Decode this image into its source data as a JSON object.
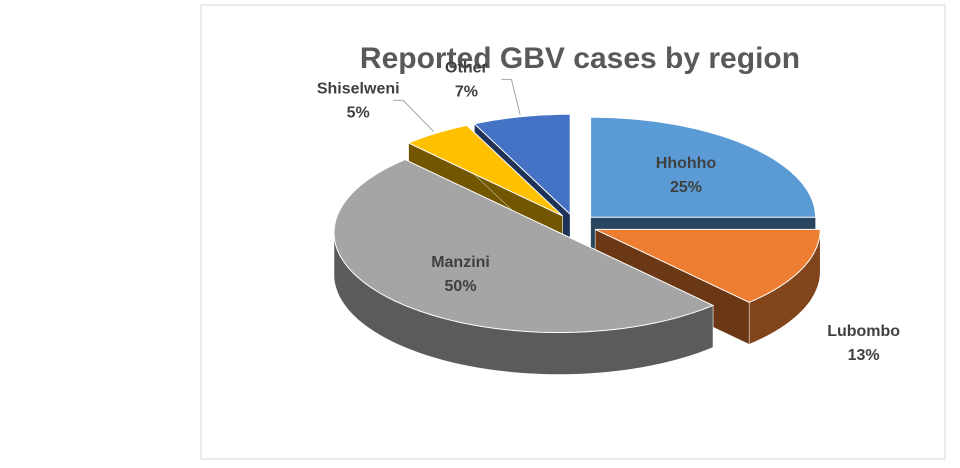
{
  "chart_data": {
    "type": "pie",
    "title": "Reported GBV cases by region",
    "categories": [
      "Hhohho",
      "Lubombo",
      "Manzini",
      "Shiselweni",
      "Other"
    ],
    "values": [
      25,
      13,
      50,
      5,
      7
    ],
    "value_labels": [
      "25%",
      "13%",
      "50%",
      "5%",
      "7%"
    ],
    "colors": [
      "#5b9bd5",
      "#ed7d31",
      "#a5a5a5",
      "#ffc000",
      "#4472c4"
    ]
  }
}
